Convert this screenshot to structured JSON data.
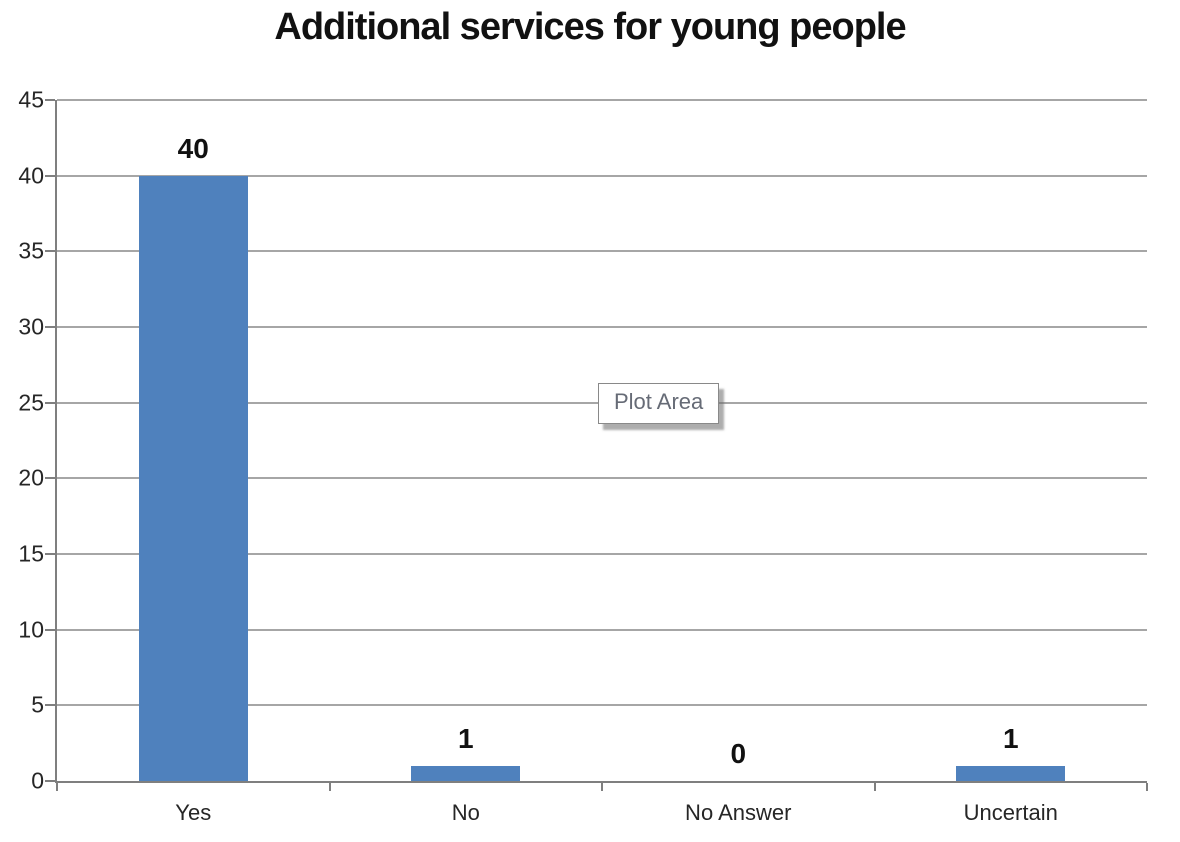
{
  "chart_data": {
    "type": "bar",
    "title": "Additional services for young people",
    "categories": [
      "Yes",
      "No",
      "No Answer",
      "Uncertain"
    ],
    "values": [
      40,
      1,
      0,
      1
    ],
    "xlabel": "",
    "ylabel": "",
    "ylim": [
      0,
      45
    ],
    "ytick_step": 5,
    "grid": true,
    "legend_position": "none",
    "bar_color": "#4F81BD",
    "gridline_color": "#a6a6a6",
    "axis_color": "#7f7f7f",
    "plot_area_label": "Plot Area"
  }
}
